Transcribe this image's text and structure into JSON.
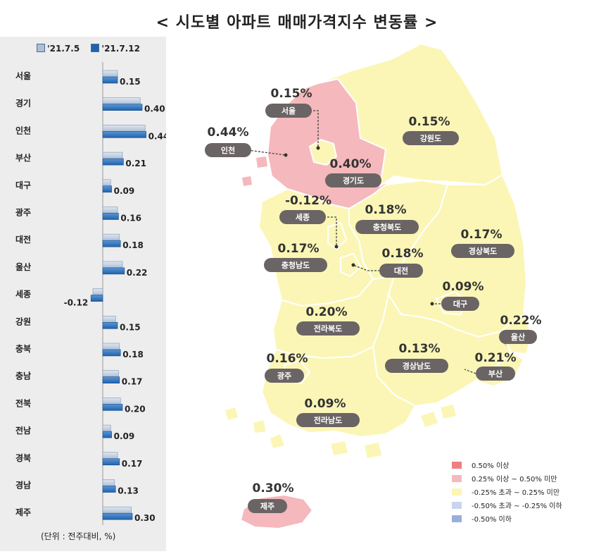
{
  "title": "< 시도별 아파트 매매가격지수 변동률 >",
  "unit_note": "(단위 : 전주대비, %)",
  "colors": {
    "prev_bar": "#aebfd3",
    "curr_bar": "#1f63ad",
    "high": "#f08080",
    "mid_high": "#f5b8bc",
    "neutral": "#fbf6b6",
    "mid_low": "#c9d4ee",
    "low": "#9aaddb",
    "label_bg": "#6b6464",
    "pct_text": "#333333"
  },
  "chart_data": {
    "type": "bar",
    "orientation": "horizontal",
    "categories": [
      "서울",
      "경기",
      "인천",
      "부산",
      "대구",
      "광주",
      "대전",
      "울산",
      "세종",
      "강원",
      "충북",
      "충남",
      "전북",
      "전남",
      "경북",
      "경남",
      "제주"
    ],
    "series": [
      {
        "name": "'21.7.5",
        "values": [
          0.15,
          0.38,
          0.43,
          0.2,
          0.08,
          0.15,
          0.17,
          0.2,
          -0.1,
          0.13,
          0.17,
          0.16,
          0.18,
          0.08,
          0.15,
          0.12,
          0.29
        ]
      },
      {
        "name": "'21.7.12",
        "values": [
          0.15,
          0.4,
          0.44,
          0.21,
          0.09,
          0.16,
          0.18,
          0.22,
          -0.12,
          0.15,
          0.18,
          0.17,
          0.2,
          0.09,
          0.17,
          0.13,
          0.3
        ]
      }
    ],
    "data_labels": [
      "0.15",
      "0.40",
      "0.44",
      "0.21",
      "0.09",
      "0.16",
      "0.18",
      "0.22",
      "-0.12",
      "0.15",
      "0.18",
      "0.17",
      "0.20",
      "0.09",
      "0.17",
      "0.13",
      "0.30"
    ],
    "legend_position": "top"
  },
  "map": {
    "regions": [
      {
        "name": "서울",
        "value": "0.15%"
      },
      {
        "name": "인천",
        "value": "0.44%"
      },
      {
        "name": "경기도",
        "value": "0.40%"
      },
      {
        "name": "강원도",
        "value": "0.15%"
      },
      {
        "name": "세종",
        "value": "-0.12%"
      },
      {
        "name": "충청북도",
        "value": "0.18%"
      },
      {
        "name": "충청남도",
        "value": "0.17%"
      },
      {
        "name": "대전",
        "value": "0.18%"
      },
      {
        "name": "경상북도",
        "value": "0.17%"
      },
      {
        "name": "대구",
        "value": "0.09%"
      },
      {
        "name": "울산",
        "value": "0.22%"
      },
      {
        "name": "전라북도",
        "value": "0.20%"
      },
      {
        "name": "광주",
        "value": "0.16%"
      },
      {
        "name": "경상남도",
        "value": "0.13%"
      },
      {
        "name": "부산",
        "value": "0.21%"
      },
      {
        "name": "전라남도",
        "value": "0.09%"
      },
      {
        "name": "제주",
        "value": "0.30%"
      }
    ],
    "legend": [
      {
        "label": "0.50% 이상",
        "color": "#f08080"
      },
      {
        "label": "0.25% 이상 ~ 0.50% 미만",
        "color": "#f5b8bc"
      },
      {
        "label": "-0.25% 초과 ~ 0.25% 미만",
        "color": "#fbf6b6"
      },
      {
        "label": "-0.50% 초과 ~ -0.25% 이하",
        "color": "#c9d4ee"
      },
      {
        "label": "-0.50% 이하",
        "color": "#9aaddb"
      }
    ]
  }
}
